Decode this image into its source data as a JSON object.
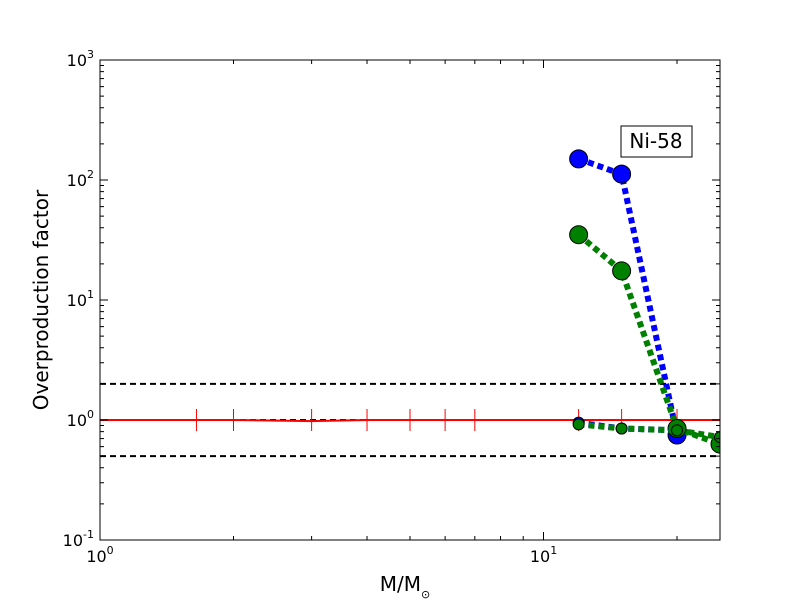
{
  "chart_data": {
    "type": "line",
    "xlabel": "M/M",
    "xlabel_sub": "⊙",
    "ylabel": "Overproduction factor",
    "xscale": "log",
    "yscale": "log",
    "xlim": [
      1,
      25
    ],
    "ylim": [
      0.1,
      1000
    ],
    "x_ticks": [
      {
        "value": 1,
        "base": "10",
        "exp": "0"
      },
      {
        "value": 10,
        "base": "10",
        "exp": "1"
      }
    ],
    "y_ticks": [
      {
        "value": 0.1,
        "base": "10",
        "exp": "-1"
      },
      {
        "value": 1,
        "base": "10",
        "exp": "0"
      },
      {
        "value": 10,
        "base": "10",
        "exp": "1"
      },
      {
        "value": 100,
        "base": "10",
        "exp": "2"
      },
      {
        "value": 1000,
        "base": "10",
        "exp": "3"
      }
    ],
    "annotation": "Ni-58",
    "reference_lines": [
      {
        "y": 2.0,
        "color": "#000000",
        "style": "dashed"
      },
      {
        "y": 1.0,
        "color": "#000000",
        "style": "dashed"
      },
      {
        "y": 0.5,
        "color": "#000000",
        "style": "dashed"
      }
    ],
    "red_line": {
      "color": "#ff0000",
      "x": [
        1.0,
        1.65,
        2.0,
        3.0,
        4.0,
        5.0,
        6.0,
        7.0,
        12.0,
        15.0,
        20.0,
        25.0
      ],
      "y": [
        1.0,
        1.0,
        1.0,
        0.98,
        1.0,
        1.0,
        1.0,
        1.0,
        1.0,
        1.0,
        1.0,
        1.0
      ],
      "error_bar_x": [
        1.65,
        2.0,
        3.0,
        4.0,
        5.0,
        6.0,
        7.0,
        12.0,
        15.0,
        20.0
      ]
    },
    "series": [
      {
        "color": "#0000ff",
        "style": "dotted-thick",
        "marker_size": "large",
        "x": [
          12,
          15,
          20
        ],
        "y": [
          150,
          112,
          0.75
        ]
      },
      {
        "color": "#008000",
        "style": "dotted-thick",
        "marker_size": "large",
        "x": [
          12,
          15,
          20,
          25
        ],
        "y": [
          35,
          17.5,
          0.85,
          0.63
        ]
      },
      {
        "color": "#0000ff",
        "style": "dotted-thick",
        "marker_size": "small",
        "x": [
          12,
          15,
          20
        ],
        "y": [
          0.95,
          0.85,
          0.82
        ]
      },
      {
        "color": "#008000",
        "style": "dotted-thick",
        "marker_size": "small",
        "x": [
          12,
          15,
          20,
          25
        ],
        "y": [
          0.92,
          0.85,
          0.82,
          0.72
        ]
      }
    ]
  }
}
